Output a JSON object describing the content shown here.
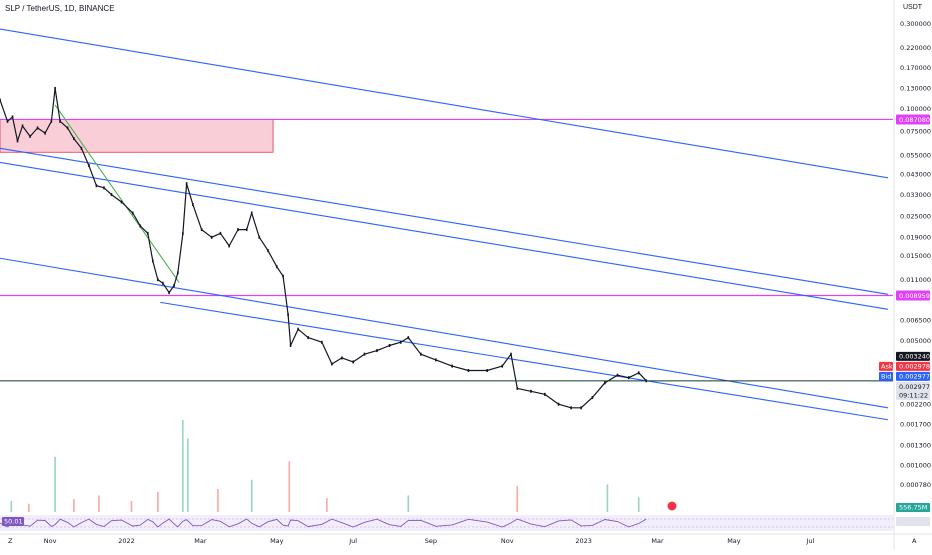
{
  "header": {
    "title": "SLP / TetherUS, 1D, BINANCE"
  },
  "axis": {
    "currency": "USDT",
    "zoom_label": "Z",
    "auto_label": "A"
  },
  "colors": {
    "candle_up": "#131722",
    "candle_down": "#131722",
    "channel": "#2962ff",
    "level": "#e040fb",
    "zone_fill": "#f8c6d0",
    "zone_stroke": "#e5334b",
    "trend": "#4caf50",
    "current_line": "#0d3b2e",
    "ask": "#f23645",
    "bid": "#2962ff",
    "volume_up": "#9ad3c5",
    "volume_down": "#f7a9a6",
    "rsi": "#7e57c2"
  },
  "chart_data": {
    "type": "candlestick",
    "scale": "log",
    "ylim": [
      0.00069,
      0.34
    ],
    "x_range": [
      "2021-09-22",
      "2023-09-05"
    ],
    "x_ticks": [
      {
        "date": "2021-11-01",
        "label": "Nov"
      },
      {
        "date": "2022-01-01",
        "label": "2022"
      },
      {
        "date": "2022-03-01",
        "label": "Mar"
      },
      {
        "date": "2022-05-01",
        "label": "May"
      },
      {
        "date": "2022-07-01",
        "label": "Jul"
      },
      {
        "date": "2022-09-01",
        "label": "Sep"
      },
      {
        "date": "2022-11-01",
        "label": "Nov"
      },
      {
        "date": "2023-01-01",
        "label": "2023"
      },
      {
        "date": "2023-03-01",
        "label": "Mar"
      },
      {
        "date": "2023-05-01",
        "label": "May"
      },
      {
        "date": "2023-07-01",
        "label": "Jul"
      }
    ],
    "y_ticks": [
      {
        "value": 0.3,
        "label": "0.300000"
      },
      {
        "value": 0.22,
        "label": "0.220000"
      },
      {
        "value": 0.17,
        "label": "0.170000"
      },
      {
        "value": 0.13,
        "label": "0.130000"
      },
      {
        "value": 0.1,
        "label": "0.100000"
      },
      {
        "value": 0.075,
        "label": "0.075000"
      },
      {
        "value": 0.055,
        "label": "0.055000"
      },
      {
        "value": 0.043,
        "label": "0.043000"
      },
      {
        "value": 0.033,
        "label": "0.033000"
      },
      {
        "value": 0.025,
        "label": "0.025000"
      },
      {
        "value": 0.019,
        "label": "0.019000"
      },
      {
        "value": 0.015,
        "label": "0.015000"
      },
      {
        "value": 0.011,
        "label": "0.011000"
      },
      {
        "value": 0.0065,
        "label": "0.006500"
      },
      {
        "value": 0.005,
        "label": "0.005000"
      },
      {
        "value": 0.0022,
        "label": "0.002200"
      },
      {
        "value": 0.0017,
        "label": "0.001700"
      },
      {
        "value": 0.0013,
        "label": "0.001300"
      },
      {
        "value": 0.001,
        "label": "0.001000"
      },
      {
        "value": 0.00078,
        "label": "0.000780"
      }
    ],
    "price_path": [
      {
        "date": "2021-09-22",
        "price": 0.112
      },
      {
        "date": "2021-09-28",
        "price": 0.085
      },
      {
        "date": "2021-10-02",
        "price": 0.09
      },
      {
        "date": "2021-10-06",
        "price": 0.066
      },
      {
        "date": "2021-10-10",
        "price": 0.08
      },
      {
        "date": "2021-10-16",
        "price": 0.07
      },
      {
        "date": "2021-10-22",
        "price": 0.078
      },
      {
        "date": "2021-10-28",
        "price": 0.073
      },
      {
        "date": "2021-11-02",
        "price": 0.085
      },
      {
        "date": "2021-11-05",
        "price": 0.13
      },
      {
        "date": "2021-11-09",
        "price": 0.085
      },
      {
        "date": "2021-11-15",
        "price": 0.078
      },
      {
        "date": "2021-11-20",
        "price": 0.068
      },
      {
        "date": "2021-11-26",
        "price": 0.06
      },
      {
        "date": "2021-12-02",
        "price": 0.048
      },
      {
        "date": "2021-12-08",
        "price": 0.037
      },
      {
        "date": "2021-12-14",
        "price": 0.036
      },
      {
        "date": "2021-12-20",
        "price": 0.033
      },
      {
        "date": "2021-12-28",
        "price": 0.03
      },
      {
        "date": "2022-01-06",
        "price": 0.026
      },
      {
        "date": "2022-01-12",
        "price": 0.022
      },
      {
        "date": "2022-01-18",
        "price": 0.02
      },
      {
        "date": "2022-01-22",
        "price": 0.014
      },
      {
        "date": "2022-01-26",
        "price": 0.011
      },
      {
        "date": "2022-01-30",
        "price": 0.0105
      },
      {
        "date": "2022-02-04",
        "price": 0.0093
      },
      {
        "date": "2022-02-08",
        "price": 0.0102
      },
      {
        "date": "2022-02-11",
        "price": 0.012
      },
      {
        "date": "2022-02-15",
        "price": 0.02
      },
      {
        "date": "2022-02-18",
        "price": 0.038
      },
      {
        "date": "2022-02-23",
        "price": 0.029
      },
      {
        "date": "2022-03-02",
        "price": 0.021
      },
      {
        "date": "2022-03-10",
        "price": 0.019
      },
      {
        "date": "2022-03-17",
        "price": 0.02
      },
      {
        "date": "2022-03-24",
        "price": 0.017
      },
      {
        "date": "2022-03-31",
        "price": 0.021
      },
      {
        "date": "2022-04-07",
        "price": 0.021
      },
      {
        "date": "2022-04-11",
        "price": 0.026
      },
      {
        "date": "2022-04-17",
        "price": 0.019
      },
      {
        "date": "2022-04-24",
        "price": 0.016
      },
      {
        "date": "2022-05-01",
        "price": 0.013
      },
      {
        "date": "2022-05-06",
        "price": 0.0115
      },
      {
        "date": "2022-05-10",
        "price": 0.007
      },
      {
        "date": "2022-05-12",
        "price": 0.0047
      },
      {
        "date": "2022-05-18",
        "price": 0.0058
      },
      {
        "date": "2022-05-26",
        "price": 0.0052
      },
      {
        "date": "2022-06-06",
        "price": 0.0049
      },
      {
        "date": "2022-06-14",
        "price": 0.0037
      },
      {
        "date": "2022-06-22",
        "price": 0.004
      },
      {
        "date": "2022-07-01",
        "price": 0.0038
      },
      {
        "date": "2022-07-10",
        "price": 0.0042
      },
      {
        "date": "2022-07-20",
        "price": 0.0044
      },
      {
        "date": "2022-07-30",
        "price": 0.0047
      },
      {
        "date": "2022-08-08",
        "price": 0.0049
      },
      {
        "date": "2022-08-14",
        "price": 0.0052
      },
      {
        "date": "2022-08-24",
        "price": 0.0042
      },
      {
        "date": "2022-09-05",
        "price": 0.0039
      },
      {
        "date": "2022-09-18",
        "price": 0.0036
      },
      {
        "date": "2022-10-01",
        "price": 0.0034
      },
      {
        "date": "2022-10-16",
        "price": 0.0034
      },
      {
        "date": "2022-10-28",
        "price": 0.0036
      },
      {
        "date": "2022-11-04",
        "price": 0.0042
      },
      {
        "date": "2022-11-09",
        "price": 0.0027
      },
      {
        "date": "2022-11-20",
        "price": 0.0026
      },
      {
        "date": "2022-12-01",
        "price": 0.0025
      },
      {
        "date": "2022-12-12",
        "price": 0.0022
      },
      {
        "date": "2022-12-22",
        "price": 0.0021
      },
      {
        "date": "2022-12-30",
        "price": 0.0021
      },
      {
        "date": "2023-01-08",
        "price": 0.0024
      },
      {
        "date": "2023-01-18",
        "price": 0.0029
      },
      {
        "date": "2023-01-28",
        "price": 0.0032
      },
      {
        "date": "2023-02-06",
        "price": 0.0031
      },
      {
        "date": "2023-02-14",
        "price": 0.0033
      },
      {
        "date": "2023-02-20",
        "price": 0.002977
      }
    ],
    "price_lines": [
      {
        "name": "resistance-level",
        "value": 0.08708,
        "label": "0.087080"
      },
      {
        "name": "support-level",
        "value": 0.008959,
        "label": "0.008959"
      }
    ],
    "current": {
      "last": "0.003240",
      "ask_label": "Ask",
      "ask": "0.002978",
      "bid_label": "Bid",
      "bid": "0.002977",
      "bid_value": 0.002977,
      "close": "0.002977",
      "countdown": "09:11:22"
    },
    "zone": {
      "x_start": "2021-09-22",
      "x_end": "2022-04-28",
      "y_low": 0.057,
      "y_high": 0.087
    },
    "channels": [
      {
        "name": "upper-channel",
        "from": {
          "date": "2021-09-22",
          "price": 0.28
        },
        "to": {
          "date": "2023-09-01",
          "price": 0.041
        }
      },
      {
        "name": "upper-channel-low",
        "from": {
          "date": "2021-09-22",
          "price": 0.06
        },
        "to": {
          "date": "2023-09-01",
          "price": 0.0091
        }
      },
      {
        "name": "mid-channel-1",
        "from": {
          "date": "2021-09-22",
          "price": 0.05
        },
        "to": {
          "date": "2023-09-01",
          "price": 0.0075
        }
      },
      {
        "name": "lower-channel-1",
        "from": {
          "date": "2021-09-22",
          "price": 0.0145
        },
        "to": {
          "date": "2023-09-01",
          "price": 0.0021
        }
      },
      {
        "name": "lower-channel-2",
        "from": {
          "date": "2022-01-28",
          "price": 0.0082
        },
        "to": {
          "date": "2023-09-01",
          "price": 0.0018
        }
      }
    ],
    "trendline": {
      "from": {
        "date": "2021-11-05",
        "price": 0.105
      },
      "to": {
        "date": "2022-02-12",
        "price": 0.0106
      }
    },
    "volume": {
      "label": "556.75M",
      "bars": [
        {
          "date": "2021-10-01",
          "value": 12,
          "up": true
        },
        {
          "date": "2021-10-15",
          "value": 9,
          "up": false
        },
        {
          "date": "2021-11-05",
          "value": 60,
          "up": true
        },
        {
          "date": "2021-11-20",
          "value": 14,
          "up": false
        },
        {
          "date": "2021-12-10",
          "value": 18,
          "up": false
        },
        {
          "date": "2022-01-05",
          "value": 12,
          "up": false
        },
        {
          "date": "2022-01-26",
          "value": 22,
          "up": false
        },
        {
          "date": "2022-02-15",
          "value": 100,
          "up": true
        },
        {
          "date": "2022-02-19",
          "value": 80,
          "up": true
        },
        {
          "date": "2022-03-15",
          "value": 25,
          "up": false
        },
        {
          "date": "2022-04-11",
          "value": 35,
          "up": true
        },
        {
          "date": "2022-05-11",
          "value": 55,
          "up": false
        },
        {
          "date": "2022-06-10",
          "value": 15,
          "up": false
        },
        {
          "date": "2022-08-14",
          "value": 18,
          "up": true
        },
        {
          "date": "2022-11-09",
          "value": 28,
          "up": false
        },
        {
          "date": "2023-01-20",
          "value": 30,
          "up": true
        },
        {
          "date": "2023-02-14",
          "value": 16,
          "up": true
        }
      ]
    },
    "rsi": {
      "label": "50.01"
    }
  }
}
